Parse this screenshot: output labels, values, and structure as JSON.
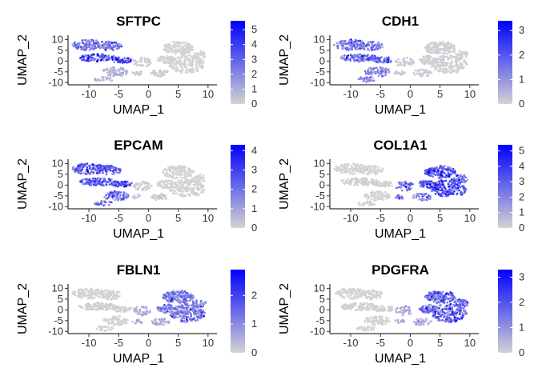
{
  "chart_data": [
    {
      "type": "scatter",
      "title": "SFTPC",
      "xlabel": "UMAP_1",
      "ylabel": "UMAP_2",
      "xticks": [
        -10,
        -5,
        0,
        5,
        10
      ],
      "yticks": [
        10,
        5,
        0,
        -5,
        -10
      ],
      "xlim": [
        -13.5,
        11.5
      ],
      "ylim": [
        -11,
        12
      ],
      "legend": {
        "ticks": [
          0,
          1,
          2,
          3,
          4,
          5
        ],
        "max": 5.6,
        "colors": [
          "#d3d3d3",
          "#0000ff"
        ]
      },
      "series": [
        {
          "region": "left-upper",
          "level": 0.45
        },
        {
          "region": "left-middle",
          "level": 0.7
        },
        {
          "region": "left-lower",
          "level": 0.15
        },
        {
          "region": "center",
          "level": 0.05
        },
        {
          "region": "right",
          "level": 0.0
        }
      ]
    },
    {
      "type": "scatter",
      "title": "CDH1",
      "xlabel": "UMAP_1",
      "ylabel": "UMAP_2",
      "xticks": [
        -10,
        -5,
        0,
        5,
        10
      ],
      "yticks": [
        10,
        5,
        0,
        -5,
        -10
      ],
      "xlim": [
        -13.5,
        11.5
      ],
      "ylim": [
        -11,
        12
      ],
      "legend": {
        "ticks": [
          0,
          1,
          2,
          3
        ],
        "max": 3.4,
        "colors": [
          "#d3d3d3",
          "#0000ff"
        ]
      },
      "series": [
        {
          "region": "left-upper",
          "level": 0.45
        },
        {
          "region": "left-middle",
          "level": 0.55
        },
        {
          "region": "left-lower",
          "level": 0.4
        },
        {
          "region": "center",
          "level": 0.05
        },
        {
          "region": "right",
          "level": 0.02
        }
      ]
    },
    {
      "type": "scatter",
      "title": "EPCAM",
      "xlabel": "UMAP_1",
      "ylabel": "UMAP_2",
      "xticks": [
        -10,
        -5,
        0,
        5,
        10
      ],
      "yticks": [
        10,
        5,
        0,
        -5,
        -10
      ],
      "xlim": [
        -13.5,
        11.5
      ],
      "ylim": [
        -11,
        12
      ],
      "legend": {
        "ticks": [
          0,
          1,
          2,
          3,
          4
        ],
        "max": 4.3,
        "colors": [
          "#d3d3d3",
          "#0000ff"
        ]
      },
      "series": [
        {
          "region": "left-upper",
          "level": 0.6
        },
        {
          "region": "left-middle",
          "level": 0.65
        },
        {
          "region": "left-lower",
          "level": 0.5
        },
        {
          "region": "center",
          "level": 0.05
        },
        {
          "region": "right",
          "level": 0.0
        }
      ]
    },
    {
      "type": "scatter",
      "title": "COL1A1",
      "xlabel": "UMAP_1",
      "ylabel": "UMAP_2",
      "xticks": [
        -10,
        -5,
        0,
        5,
        10
      ],
      "yticks": [
        10,
        5,
        0,
        -5,
        -10
      ],
      "xlim": [
        -13.5,
        11.5
      ],
      "ylim": [
        -11,
        12
      ],
      "legend": {
        "ticks": [
          0,
          1,
          2,
          3,
          4,
          5
        ],
        "max": 5.4,
        "colors": [
          "#d3d3d3",
          "#0000ff"
        ]
      },
      "series": [
        {
          "region": "left-upper",
          "level": 0.0
        },
        {
          "region": "left-middle",
          "level": 0.02
        },
        {
          "region": "left-lower",
          "level": 0.0
        },
        {
          "region": "center",
          "level": 0.5
        },
        {
          "region": "right",
          "level": 0.7
        }
      ]
    },
    {
      "type": "scatter",
      "title": "FBLN1",
      "xlabel": "UMAP_1",
      "ylabel": "UMAP_2",
      "xticks": [
        -10,
        -5,
        0,
        5,
        10
      ],
      "yticks": [
        10,
        5,
        0,
        -5,
        -10
      ],
      "xlim": [
        -13.5,
        11.5
      ],
      "ylim": [
        -11,
        12
      ],
      "legend": {
        "ticks": [
          0,
          1,
          2
        ],
        "max": 2.9,
        "colors": [
          "#d3d3d3",
          "#0000ff"
        ]
      },
      "series": [
        {
          "region": "left-upper",
          "level": 0.0
        },
        {
          "region": "left-middle",
          "level": 0.02
        },
        {
          "region": "left-lower",
          "level": 0.0
        },
        {
          "region": "center",
          "level": 0.2
        },
        {
          "region": "right",
          "level": 0.45
        }
      ]
    },
    {
      "type": "scatter",
      "title": "PDGFRA",
      "xlabel": "UMAP_1",
      "ylabel": "UMAP_2",
      "xticks": [
        -10,
        -5,
        0,
        5,
        10
      ],
      "yticks": [
        10,
        5,
        0,
        -5,
        -10
      ],
      "xlim": [
        -13.5,
        11.5
      ],
      "ylim": [
        -11,
        12
      ],
      "legend": {
        "ticks": [
          0,
          1,
          2,
          3
        ],
        "max": 3.3,
        "colors": [
          "#d3d3d3",
          "#0000ff"
        ]
      },
      "series": [
        {
          "region": "left-upper",
          "level": 0.0
        },
        {
          "region": "left-middle",
          "level": 0.02
        },
        {
          "region": "left-lower",
          "level": 0.0
        },
        {
          "region": "center",
          "level": 0.2
        },
        {
          "region": "right",
          "level": 0.55
        }
      ]
    }
  ]
}
